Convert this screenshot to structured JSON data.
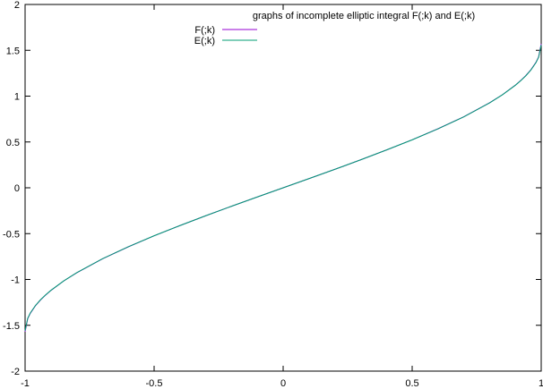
{
  "chart_data": {
    "type": "line",
    "title": "graphs of incomplete elliptic integral F(;k) and E(;k)",
    "xlabel": "",
    "ylabel": "",
    "xlim": [
      -1,
      1
    ],
    "ylim": [
      -2,
      2
    ],
    "x_ticks": [
      -1,
      -0.5,
      0,
      0.5,
      1
    ],
    "y_ticks": [
      -2,
      -1.5,
      -1,
      -0.5,
      0,
      0.5,
      1,
      1.5,
      2
    ],
    "x_tick_labels": [
      "-1",
      "-0.5",
      "0",
      "0.5",
      "1"
    ],
    "y_tick_labels": [
      "-2",
      "-1.5",
      "-1",
      "-0.5",
      "0",
      "0.5",
      "1",
      "1.5",
      "2"
    ],
    "grid": false,
    "legend_position": "top-center",
    "series": [
      {
        "name": "F(;k)",
        "color": "#9400d3",
        "x": [
          -1.0,
          -0.99,
          -0.98,
          -0.96,
          -0.94,
          -0.92,
          -0.9,
          -0.85,
          -0.8,
          -0.7,
          -0.6,
          -0.5,
          -0.4,
          -0.3,
          -0.2,
          -0.1,
          0.0,
          0.1,
          0.2,
          0.3,
          0.4,
          0.5,
          0.6,
          0.7,
          0.8,
          0.85,
          0.9,
          0.92,
          0.94,
          0.96,
          0.98,
          0.99,
          1.0
        ],
        "values": [
          -1.571,
          -1.429,
          -1.37,
          -1.287,
          -1.223,
          -1.169,
          -1.12,
          -1.016,
          -0.927,
          -0.775,
          -0.644,
          -0.524,
          -0.412,
          -0.305,
          -0.201,
          -0.1,
          0.0,
          0.1,
          0.201,
          0.305,
          0.412,
          0.524,
          0.644,
          0.775,
          0.927,
          1.016,
          1.12,
          1.169,
          1.223,
          1.287,
          1.37,
          1.429,
          1.571
        ]
      },
      {
        "name": "E(;k)",
        "color": "#009e73",
        "x": [
          -1.0,
          -0.99,
          -0.98,
          -0.96,
          -0.94,
          -0.92,
          -0.9,
          -0.85,
          -0.8,
          -0.7,
          -0.6,
          -0.5,
          -0.4,
          -0.3,
          -0.2,
          -0.1,
          0.0,
          0.1,
          0.2,
          0.3,
          0.4,
          0.5,
          0.6,
          0.7,
          0.8,
          0.85,
          0.9,
          0.92,
          0.94,
          0.96,
          0.98,
          0.99,
          1.0
        ],
        "values": [
          -1.56,
          -1.425,
          -1.367,
          -1.285,
          -1.221,
          -1.167,
          -1.119,
          -1.015,
          -0.926,
          -0.774,
          -0.643,
          -0.523,
          -0.412,
          -0.305,
          -0.201,
          -0.1,
          0.0,
          0.1,
          0.201,
          0.305,
          0.412,
          0.523,
          0.643,
          0.774,
          0.926,
          1.015,
          1.119,
          1.167,
          1.221,
          1.285,
          1.367,
          1.425,
          1.56
        ]
      }
    ]
  }
}
